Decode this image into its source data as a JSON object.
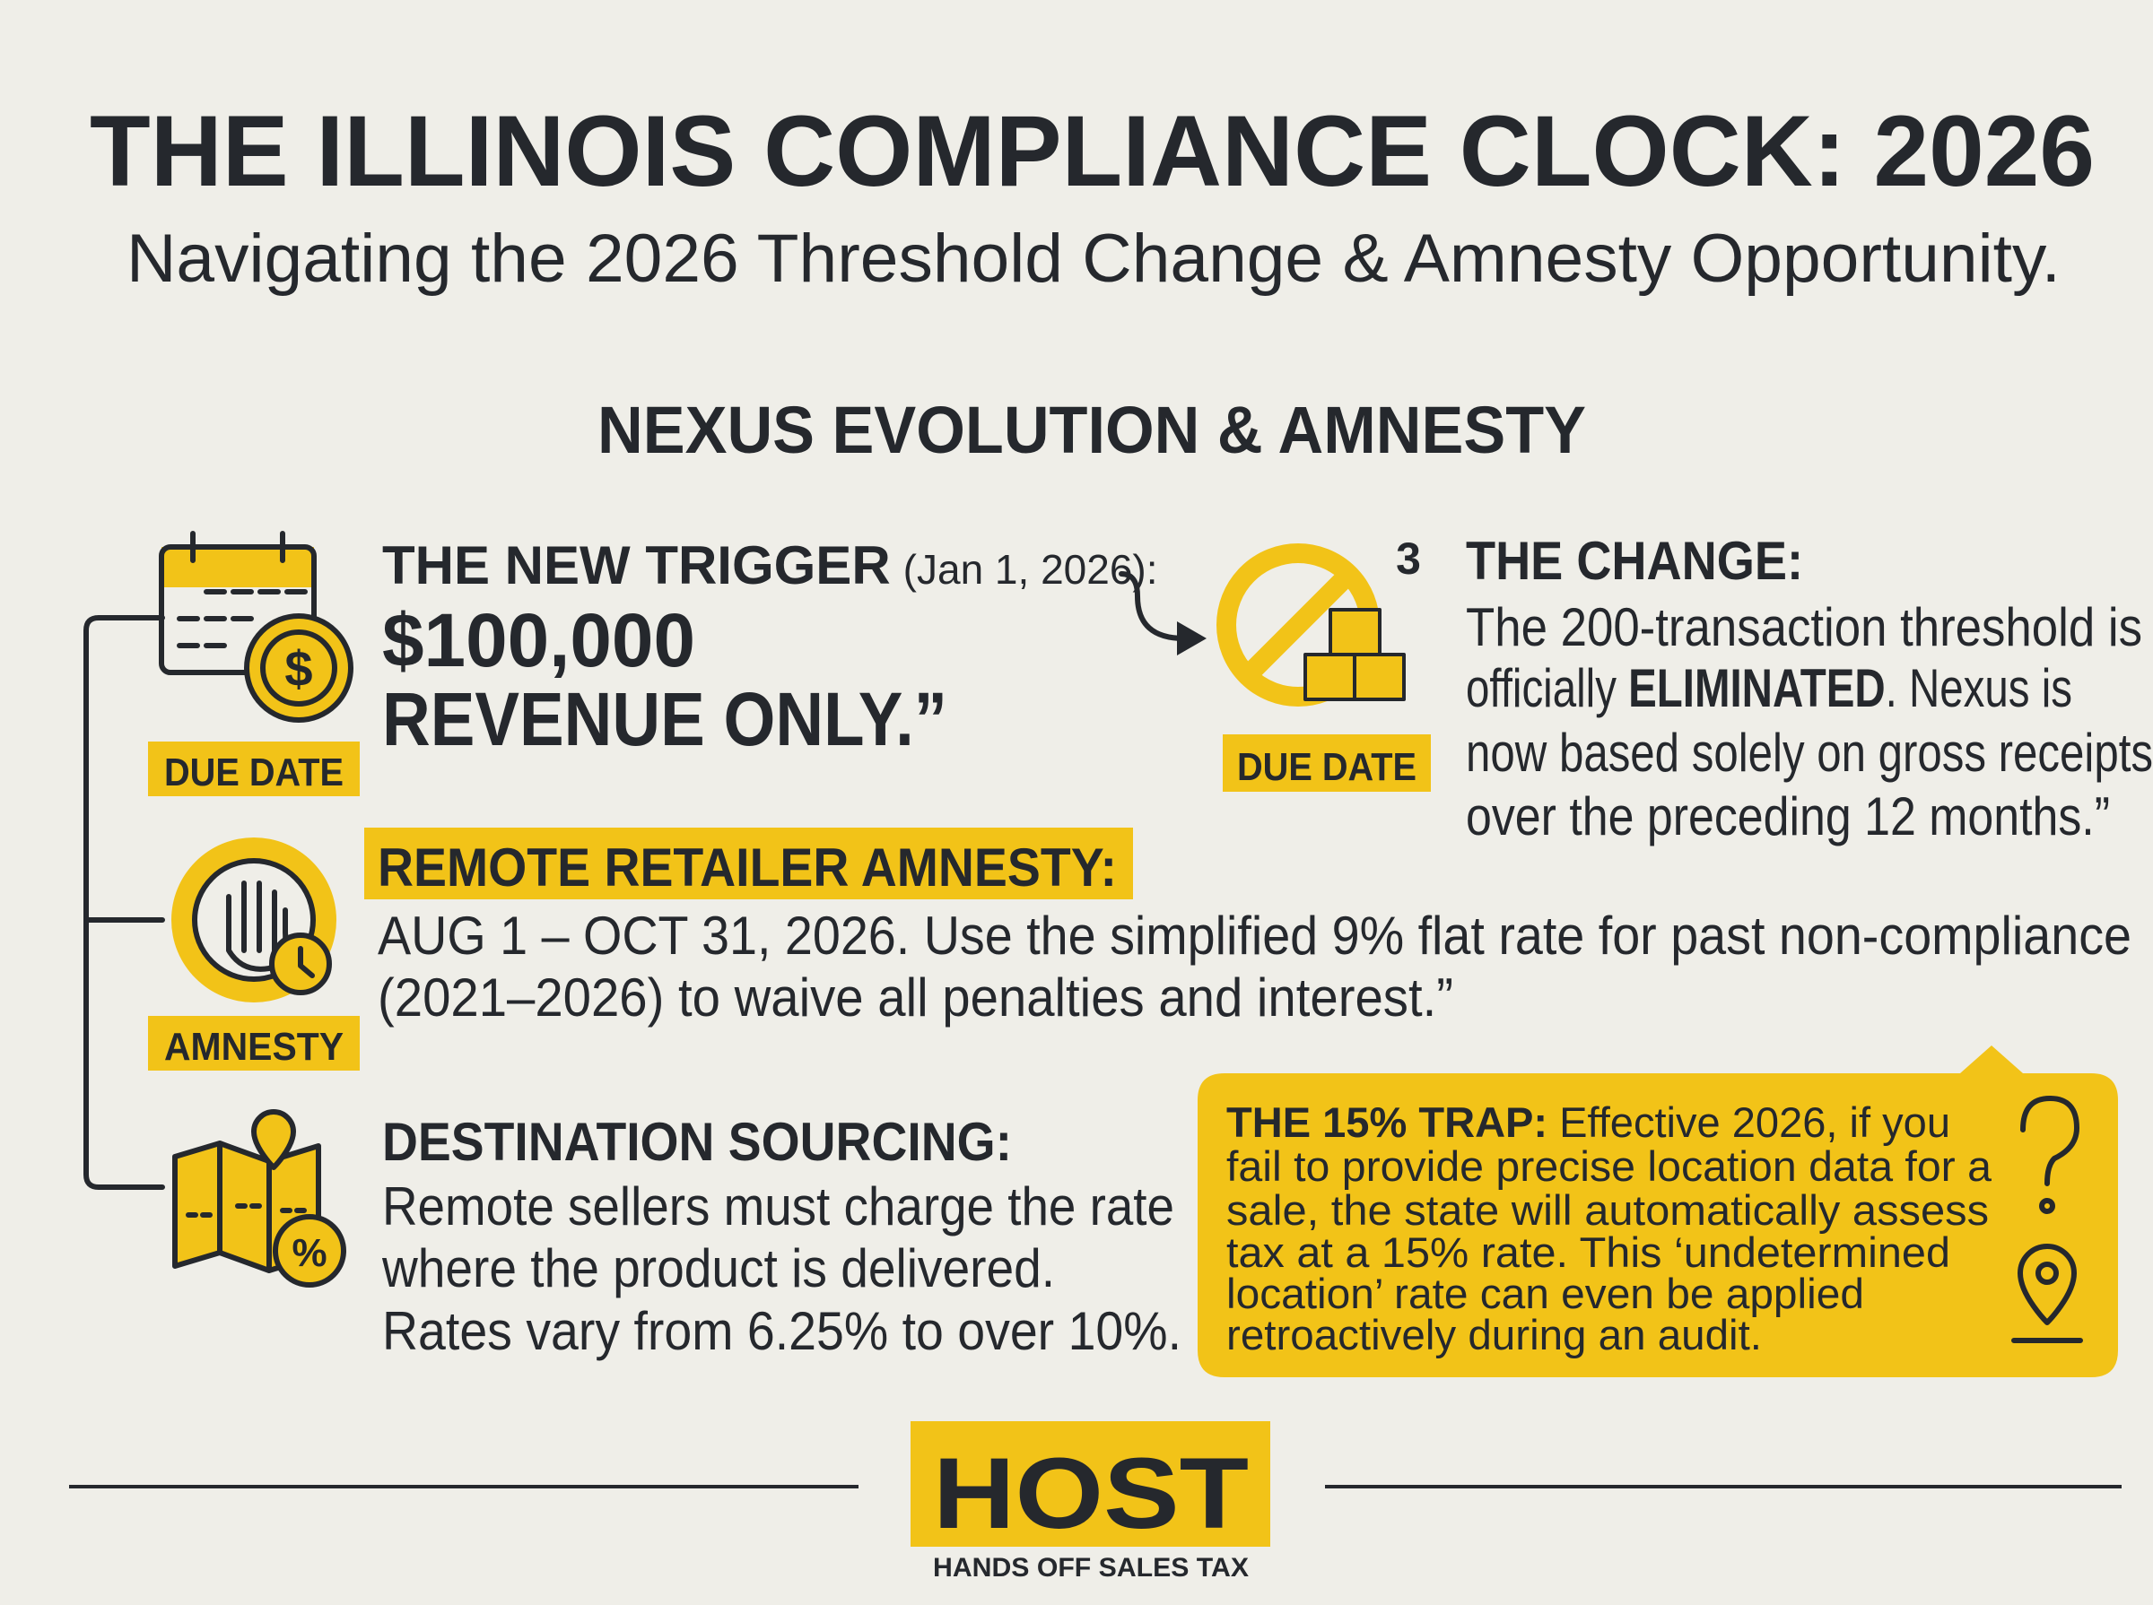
{
  "header": {
    "title": "THE ILLINOIS COMPLIANCE CLOCK: 2026",
    "subtitle": "Navigating the 2026 Threshold Change & Amnesty Opportunity."
  },
  "section_title": "NEXUS EVOLUTION & AMNESTY",
  "trigger": {
    "label": "THE NEW TRIGGER",
    "date_note": "(Jan 1, 2026):",
    "headline": [
      "$100,000",
      "REVENUE ONLY.”"
    ],
    "badge": "DUE DATE"
  },
  "change": {
    "number": "3",
    "label": "THE CHANGE:",
    "badge": "DUE DATE",
    "lines": [
      "The 200-transaction threshold is",
      "officially ",
      "ELIMINATED",
      ". Nexus is",
      "now based solely on gross receipts",
      "over the preceding 12 months.”"
    ]
  },
  "amnesty": {
    "label": "REMOTE RETAILER AMNESTY:",
    "badge": "AMNESTY",
    "lines": [
      "AUG 1 – OCT 31, 2026. Use the simplified 9% flat rate for past non-compliance",
      "(2021–2026) to waive all penalties and interest.”"
    ]
  },
  "sourcing": {
    "label": "DESTINATION SOURCING:",
    "lines": [
      "Remote sellers must charge the rate",
      "where the product is delivered.",
      "Rates vary from 6.25% to over 10%."
    ]
  },
  "trap": {
    "label": "THE 15% TRAP:",
    "lines": [
      " Effective 2026, if you",
      "fail to provide precise location data for a",
      "sale, the state will automatically assess",
      "tax at a 15% rate. This ‘undetermined",
      "location’ rate can even be applied",
      "retroactively during an audit."
    ]
  },
  "footer": {
    "logo": "HOST",
    "tagline": "HANDS OFF SALES TAX"
  }
}
